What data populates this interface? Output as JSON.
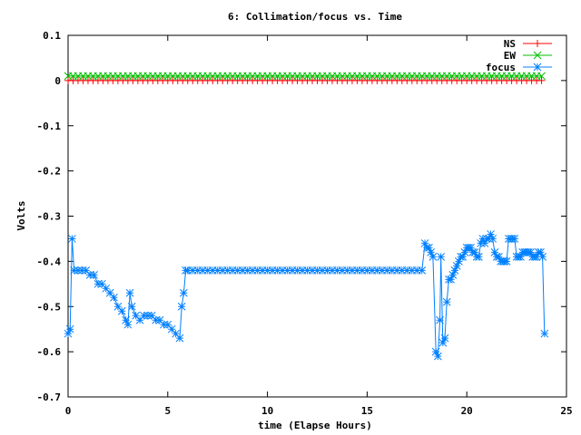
{
  "chart_data": {
    "type": "line",
    "title": "6: Collimation/focus vs. Time",
    "xlabel": "time (Elapse Hours)",
    "ylabel": "Volts",
    "xlim": [
      0,
      25
    ],
    "ylim": [
      -0.7,
      0.1
    ],
    "x_ticks": [
      0,
      5,
      10,
      15,
      20,
      25
    ],
    "y_ticks": [
      0.1,
      0,
      -0.1,
      -0.2,
      -0.3,
      -0.4,
      -0.5,
      -0.6,
      -0.7
    ],
    "grid": false,
    "legend_position": "top-right",
    "series": [
      {
        "name": "NS",
        "color": "#ff0000",
        "marker": "plus",
        "x": [
          0.0,
          0.25,
          0.5,
          0.75,
          1.0,
          1.25,
          1.5,
          1.75,
          2.0,
          2.25,
          2.5,
          2.75,
          3.0,
          3.25,
          3.5,
          3.75,
          4.0,
          4.25,
          4.5,
          4.75,
          5.0,
          5.25,
          5.5,
          5.75,
          6.0,
          6.25,
          6.5,
          6.75,
          7.0,
          7.25,
          7.5,
          7.75,
          8.0,
          8.25,
          8.5,
          8.75,
          9.0,
          9.25,
          9.5,
          9.75,
          10.0,
          10.25,
          10.5,
          10.75,
          11.0,
          11.25,
          11.5,
          11.75,
          12.0,
          12.25,
          12.5,
          12.75,
          13.0,
          13.25,
          13.5,
          13.75,
          14.0,
          14.25,
          14.5,
          14.75,
          15.0,
          15.25,
          15.5,
          15.75,
          16.0,
          16.25,
          16.5,
          16.75,
          17.0,
          17.25,
          17.5,
          17.75,
          18.0,
          18.25,
          18.5,
          18.75,
          19.0,
          19.25,
          19.5,
          19.75,
          20.0,
          20.25,
          20.5,
          20.75,
          21.0,
          21.25,
          21.5,
          21.75,
          22.0,
          22.25,
          22.5,
          22.75,
          23.0,
          23.25,
          23.5,
          23.75
        ],
        "y": [
          0.0,
          0.0,
          0.0,
          0.0,
          0.0,
          0.0,
          0.0,
          0.0,
          0.0,
          0.0,
          0.0,
          0.0,
          0.0,
          0.0,
          0.0,
          0.0,
          0.0,
          0.0,
          0.0,
          0.0,
          0.0,
          0.0,
          0.0,
          0.0,
          0.0,
          0.0,
          0.0,
          0.0,
          0.0,
          0.0,
          0.0,
          0.0,
          0.0,
          0.0,
          0.0,
          0.0,
          0.0,
          0.0,
          0.0,
          0.0,
          0.0,
          0.0,
          0.0,
          0.0,
          0.0,
          0.0,
          0.0,
          0.0,
          0.0,
          0.0,
          0.0,
          0.0,
          0.0,
          0.0,
          0.0,
          0.0,
          0.0,
          0.0,
          0.0,
          0.0,
          0.0,
          0.0,
          0.0,
          0.0,
          0.0,
          0.0,
          0.0,
          0.0,
          0.0,
          0.0,
          0.0,
          0.0,
          0.0,
          0.0,
          0.0,
          0.0,
          0.0,
          0.0,
          0.0,
          0.0,
          0.0,
          0.0,
          0.0,
          0.0,
          0.0,
          0.0,
          0.0,
          0.0,
          0.0,
          0.0,
          0.0,
          0.0,
          0.0,
          0.0,
          0.0,
          0.0
        ]
      },
      {
        "name": "EW",
        "color": "#00c000",
        "marker": "cross",
        "x": [
          0.0,
          0.25,
          0.5,
          0.75,
          1.0,
          1.25,
          1.5,
          1.75,
          2.0,
          2.25,
          2.5,
          2.75,
          3.0,
          3.25,
          3.5,
          3.75,
          4.0,
          4.25,
          4.5,
          4.75,
          5.0,
          5.25,
          5.5,
          5.75,
          6.0,
          6.25,
          6.5,
          6.75,
          7.0,
          7.25,
          7.5,
          7.75,
          8.0,
          8.25,
          8.5,
          8.75,
          9.0,
          9.25,
          9.5,
          9.75,
          10.0,
          10.25,
          10.5,
          10.75,
          11.0,
          11.25,
          11.5,
          11.75,
          12.0,
          12.25,
          12.5,
          12.75,
          13.0,
          13.25,
          13.5,
          13.75,
          14.0,
          14.25,
          14.5,
          14.75,
          15.0,
          15.25,
          15.5,
          15.75,
          16.0,
          16.25,
          16.5,
          16.75,
          17.0,
          17.25,
          17.5,
          17.75,
          18.0,
          18.25,
          18.5,
          18.75,
          19.0,
          19.25,
          19.5,
          19.75,
          20.0,
          20.25,
          20.5,
          20.75,
          21.0,
          21.25,
          21.5,
          21.75,
          22.0,
          22.25,
          22.5,
          22.75,
          23.0,
          23.25,
          23.5,
          23.75
        ],
        "y": [
          0.01,
          0.01,
          0.01,
          0.01,
          0.01,
          0.01,
          0.01,
          0.01,
          0.01,
          0.01,
          0.01,
          0.01,
          0.01,
          0.01,
          0.01,
          0.01,
          0.01,
          0.01,
          0.01,
          0.01,
          0.01,
          0.01,
          0.01,
          0.01,
          0.01,
          0.01,
          0.01,
          0.01,
          0.01,
          0.01,
          0.01,
          0.01,
          0.01,
          0.01,
          0.01,
          0.01,
          0.01,
          0.01,
          0.01,
          0.01,
          0.01,
          0.01,
          0.01,
          0.01,
          0.01,
          0.01,
          0.01,
          0.01,
          0.01,
          0.01,
          0.01,
          0.01,
          0.01,
          0.01,
          0.01,
          0.01,
          0.01,
          0.01,
          0.01,
          0.01,
          0.01,
          0.01,
          0.01,
          0.01,
          0.01,
          0.01,
          0.01,
          0.01,
          0.01,
          0.01,
          0.01,
          0.01,
          0.01,
          0.01,
          0.01,
          0.01,
          0.01,
          0.01,
          0.01,
          0.01,
          0.01,
          0.01,
          0.01,
          0.01,
          0.01,
          0.01,
          0.01,
          0.01,
          0.01,
          0.01,
          0.01,
          0.01,
          0.01,
          0.01,
          0.01,
          0.01
        ]
      },
      {
        "name": "focus",
        "color": "#0080ff",
        "marker": "star",
        "x": [
          0.0,
          0.1,
          0.2,
          0.3,
          0.5,
          0.7,
          0.9,
          1.1,
          1.3,
          1.5,
          1.7,
          1.9,
          2.1,
          2.3,
          2.5,
          2.7,
          2.9,
          3.0,
          3.1,
          3.2,
          3.4,
          3.6,
          3.8,
          4.0,
          4.2,
          4.4,
          4.6,
          4.8,
          5.0,
          5.2,
          5.4,
          5.6,
          5.7,
          5.8,
          5.9,
          6.0,
          6.25,
          6.5,
          6.75,
          7.0,
          7.25,
          7.5,
          7.75,
          8.0,
          8.25,
          8.5,
          8.75,
          9.0,
          9.25,
          9.5,
          9.75,
          10.0,
          10.25,
          10.5,
          10.75,
          11.0,
          11.25,
          11.5,
          11.75,
          12.0,
          12.25,
          12.5,
          12.75,
          13.0,
          13.25,
          13.5,
          13.75,
          14.0,
          14.25,
          14.5,
          14.75,
          15.0,
          15.25,
          15.5,
          15.75,
          16.0,
          16.25,
          16.5,
          16.75,
          17.0,
          17.25,
          17.5,
          17.75,
          17.9,
          18.0,
          18.1,
          18.2,
          18.3,
          18.45,
          18.55,
          18.65,
          18.7,
          18.8,
          18.9,
          19.0,
          19.1,
          19.2,
          19.3,
          19.4,
          19.5,
          19.6,
          19.7,
          19.8,
          19.9,
          20.0,
          20.1,
          20.2,
          20.3,
          20.4,
          20.5,
          20.6,
          20.7,
          20.8,
          20.9,
          21.0,
          21.1,
          21.2,
          21.3,
          21.4,
          21.5,
          21.6,
          21.7,
          21.8,
          21.9,
          22.0,
          22.1,
          22.2,
          22.3,
          22.4,
          22.5,
          22.6,
          22.7,
          22.8,
          22.9,
          23.0,
          23.1,
          23.2,
          23.3,
          23.4,
          23.5,
          23.6,
          23.7,
          23.8,
          23.9
        ],
        "y": [
          -0.56,
          -0.55,
          -0.35,
          -0.42,
          -0.42,
          -0.42,
          -0.42,
          -0.43,
          -0.43,
          -0.45,
          -0.45,
          -0.46,
          -0.47,
          -0.48,
          -0.5,
          -0.51,
          -0.53,
          -0.54,
          -0.47,
          -0.5,
          -0.52,
          -0.53,
          -0.52,
          -0.52,
          -0.52,
          -0.53,
          -0.53,
          -0.54,
          -0.54,
          -0.55,
          -0.56,
          -0.57,
          -0.5,
          -0.47,
          -0.42,
          -0.42,
          -0.42,
          -0.42,
          -0.42,
          -0.42,
          -0.42,
          -0.42,
          -0.42,
          -0.42,
          -0.42,
          -0.42,
          -0.42,
          -0.42,
          -0.42,
          -0.42,
          -0.42,
          -0.42,
          -0.42,
          -0.42,
          -0.42,
          -0.42,
          -0.42,
          -0.42,
          -0.42,
          -0.42,
          -0.42,
          -0.42,
          -0.42,
          -0.42,
          -0.42,
          -0.42,
          -0.42,
          -0.42,
          -0.42,
          -0.42,
          -0.42,
          -0.42,
          -0.42,
          -0.42,
          -0.42,
          -0.42,
          -0.42,
          -0.42,
          -0.42,
          -0.42,
          -0.42,
          -0.42,
          -0.42,
          -0.36,
          -0.37,
          -0.37,
          -0.38,
          -0.39,
          -0.6,
          -0.61,
          -0.53,
          -0.39,
          -0.58,
          -0.57,
          -0.49,
          -0.44,
          -0.44,
          -0.43,
          -0.42,
          -0.41,
          -0.4,
          -0.39,
          -0.39,
          -0.38,
          -0.37,
          -0.37,
          -0.37,
          -0.38,
          -0.38,
          -0.39,
          -0.39,
          -0.36,
          -0.35,
          -0.36,
          -0.35,
          -0.35,
          -0.34,
          -0.35,
          -0.38,
          -0.39,
          -0.39,
          -0.4,
          -0.4,
          -0.4,
          -0.4,
          -0.35,
          -0.35,
          -0.35,
          -0.35,
          -0.39,
          -0.39,
          -0.39,
          -0.38,
          -0.38,
          -0.38,
          -0.38,
          -0.38,
          -0.39,
          -0.39,
          -0.39,
          -0.38,
          -0.38,
          -0.39,
          -0.56
        ]
      }
    ]
  }
}
